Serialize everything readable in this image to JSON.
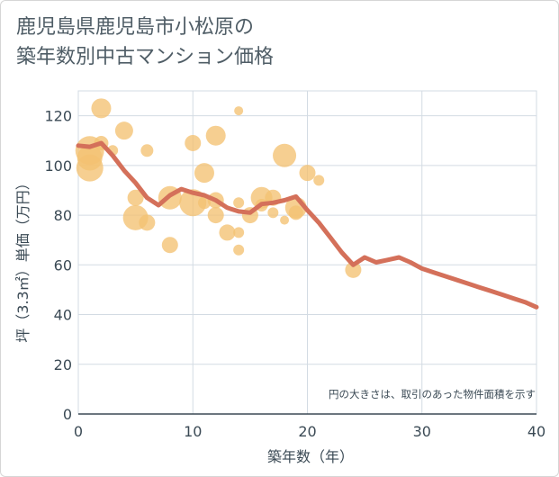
{
  "title": {
    "line1": "鹿児島県鹿児島市小松原の",
    "line2": "築年数別中古マンション価格"
  },
  "note": "円の大きさは、取引のあった物件面積を示す",
  "colors": {
    "bubble": "#f3c172",
    "line": "#d4705a",
    "grid": "#d3dbe3",
    "axis": "#3b4a55"
  },
  "chart_data": {
    "type": "scatter",
    "xlabel": "築年数（年）",
    "ylabel": "坪（3.3㎡）単価（万円）",
    "xlim": [
      0,
      40
    ],
    "ylim": [
      0,
      130
    ],
    "xticks": [
      0,
      10,
      20,
      30,
      40
    ],
    "yticks": [
      0,
      20,
      40,
      60,
      80,
      100,
      120
    ],
    "grid": true,
    "bubbles": [
      {
        "x": 1,
        "y": 106,
        "size": 16
      },
      {
        "x": 1,
        "y": 103,
        "size": 14
      },
      {
        "x": 1,
        "y": 99,
        "size": 15
      },
      {
        "x": 2,
        "y": 123,
        "size": 11
      },
      {
        "x": 2,
        "y": 109,
        "size": 8
      },
      {
        "x": 3,
        "y": 106,
        "size": 6
      },
      {
        "x": 4,
        "y": 114,
        "size": 10
      },
      {
        "x": 5,
        "y": 87,
        "size": 9
      },
      {
        "x": 5,
        "y": 79,
        "size": 14
      },
      {
        "x": 6,
        "y": 106,
        "size": 7
      },
      {
        "x": 6,
        "y": 77,
        "size": 9
      },
      {
        "x": 8,
        "y": 87,
        "size": 13
      },
      {
        "x": 8,
        "y": 68,
        "size": 9
      },
      {
        "x": 10,
        "y": 109,
        "size": 9
      },
      {
        "x": 10,
        "y": 85,
        "size": 15
      },
      {
        "x": 11,
        "y": 97,
        "size": 11
      },
      {
        "x": 11,
        "y": 85,
        "size": 7
      },
      {
        "x": 12,
        "y": 112,
        "size": 11
      },
      {
        "x": 12,
        "y": 86,
        "size": 9
      },
      {
        "x": 12,
        "y": 80,
        "size": 9
      },
      {
        "x": 13,
        "y": 73,
        "size": 9
      },
      {
        "x": 14,
        "y": 122,
        "size": 5
      },
      {
        "x": 14,
        "y": 85,
        "size": 6
      },
      {
        "x": 14,
        "y": 73,
        "size": 6
      },
      {
        "x": 14,
        "y": 66,
        "size": 6
      },
      {
        "x": 15,
        "y": 80,
        "size": 9
      },
      {
        "x": 16,
        "y": 87,
        "size": 12
      },
      {
        "x": 16,
        "y": 84,
        "size": 7
      },
      {
        "x": 17,
        "y": 87,
        "size": 9
      },
      {
        "x": 17,
        "y": 81,
        "size": 6
      },
      {
        "x": 18,
        "y": 104,
        "size": 13
      },
      {
        "x": 18,
        "y": 78,
        "size": 5
      },
      {
        "x": 19,
        "y": 83,
        "size": 12
      },
      {
        "x": 19,
        "y": 81,
        "size": 8
      },
      {
        "x": 20,
        "y": 97,
        "size": 9
      },
      {
        "x": 21,
        "y": 94,
        "size": 6
      },
      {
        "x": 24,
        "y": 58,
        "size": 9
      }
    ],
    "series": [
      {
        "x": [
          0,
          1,
          2,
          3,
          4,
          5,
          6,
          7,
          8,
          9,
          10,
          11,
          12,
          13,
          14,
          15,
          16,
          17,
          18,
          19,
          20,
          21,
          22,
          23,
          24,
          25,
          26,
          27,
          28,
          29,
          30,
          31,
          32,
          33,
          34,
          35,
          36,
          37,
          38,
          39,
          40
        ],
        "y": [
          108,
          107.5,
          109,
          104,
          98,
          93,
          87,
          84,
          88,
          90.5,
          89,
          88,
          86,
          83,
          81.5,
          81,
          84.5,
          85,
          86,
          87.5,
          82,
          77,
          71,
          65,
          60,
          63,
          61,
          62,
          63,
          61,
          58.5,
          57,
          55.5,
          54,
          52.5,
          51,
          49.5,
          48,
          46.5,
          45,
          43
        ]
      }
    ]
  }
}
